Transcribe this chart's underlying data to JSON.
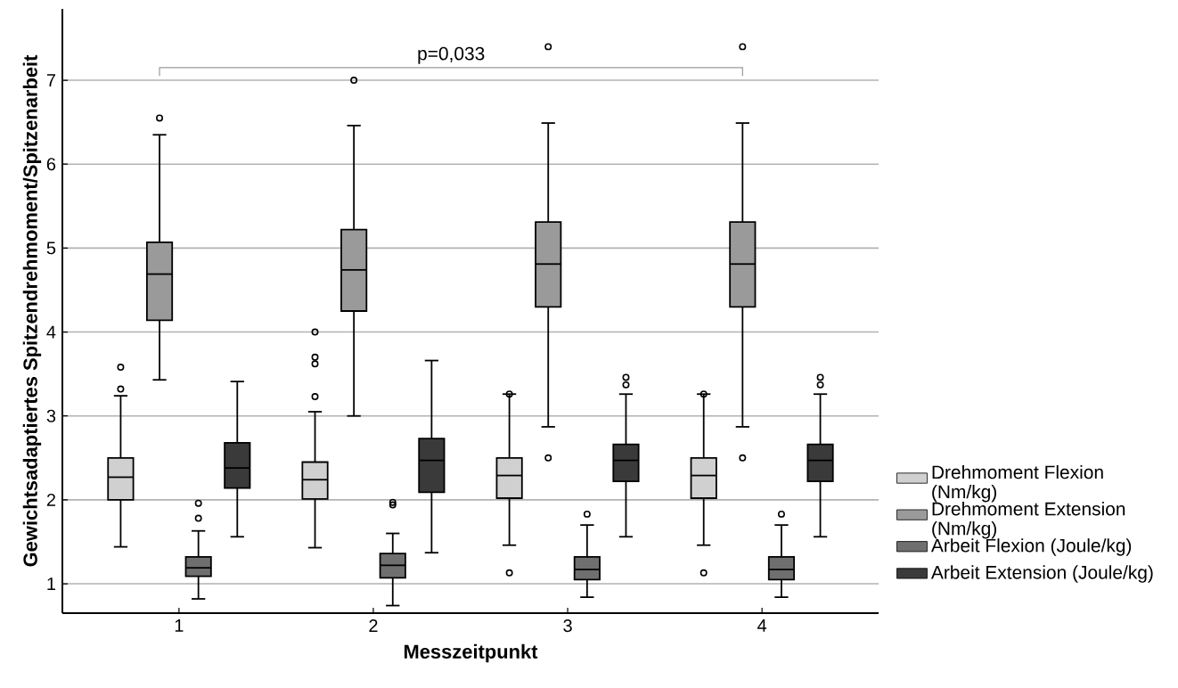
{
  "chart_data": {
    "type": "box",
    "xlabel": "Messzeitpunkt",
    "ylabel": "Gewichtsadaptiertes Spitzendrehmoment/Spitzenarbeit",
    "categories": [
      "1",
      "2",
      "3",
      "4"
    ],
    "ylim": [
      0.65,
      7.85
    ],
    "yticks": [
      1,
      2,
      3,
      4,
      5,
      6,
      7
    ],
    "grid": "y",
    "legend": "right",
    "annotations": [
      "p=0,033"
    ],
    "series": [
      {
        "name": "Drehmoment Flexion (Nm/kg)",
        "color": "#d0d0d0",
        "boxes": [
          {
            "low": 1.44,
            "q1": 2.0,
            "median": 2.27,
            "q3": 2.5,
            "high": 3.24,
            "outliers": [
              3.32,
              3.58
            ]
          },
          {
            "low": 1.43,
            "q1": 2.01,
            "median": 2.24,
            "q3": 2.45,
            "high": 3.05,
            "outliers": [
              3.23,
              3.62,
              3.7,
              4.0
            ]
          },
          {
            "low": 1.46,
            "q1": 2.02,
            "median": 2.29,
            "q3": 2.5,
            "high": 3.26,
            "outliers": [
              3.26,
              1.13
            ]
          },
          {
            "low": 1.46,
            "q1": 2.02,
            "median": 2.29,
            "q3": 2.5,
            "high": 3.26,
            "outliers": [
              3.26,
              1.13
            ]
          }
        ]
      },
      {
        "name": "Drehmoment Extension (Nm/kg)",
        "color": "#9a9a9a",
        "boxes": [
          {
            "low": 3.43,
            "q1": 4.14,
            "median": 4.69,
            "q3": 5.07,
            "high": 6.35,
            "outliers": [
              6.55
            ]
          },
          {
            "low": 3.0,
            "q1": 4.25,
            "median": 4.74,
            "q3": 5.22,
            "high": 6.46,
            "outliers": [
              7.0
            ]
          },
          {
            "low": 2.87,
            "q1": 4.3,
            "median": 4.81,
            "q3": 5.31,
            "high": 6.49,
            "outliers": [
              7.4,
              2.5
            ]
          },
          {
            "low": 2.87,
            "q1": 4.3,
            "median": 4.81,
            "q3": 5.31,
            "high": 6.49,
            "outliers": [
              7.4,
              2.5
            ]
          }
        ]
      },
      {
        "name": "Arbeit Flexion (Joule/kg)",
        "color": "#6f6f6f",
        "boxes": [
          {
            "low": 0.82,
            "q1": 1.09,
            "median": 1.19,
            "q3": 1.32,
            "high": 1.63,
            "outliers": [
              1.78,
              1.96
            ]
          },
          {
            "low": 0.74,
            "q1": 1.07,
            "median": 1.22,
            "q3": 1.36,
            "high": 1.6,
            "outliers": [
              1.94,
              1.97
            ]
          },
          {
            "low": 0.84,
            "q1": 1.05,
            "median": 1.17,
            "q3": 1.32,
            "high": 1.7,
            "outliers": [
              1.83
            ]
          },
          {
            "low": 0.84,
            "q1": 1.05,
            "median": 1.17,
            "q3": 1.32,
            "high": 1.7,
            "outliers": [
              1.83
            ]
          }
        ]
      },
      {
        "name": "Arbeit Extension (Joule/kg)",
        "color": "#3a3a3a",
        "boxes": [
          {
            "low": 1.56,
            "q1": 2.14,
            "median": 2.38,
            "q3": 2.68,
            "high": 3.41
          },
          {
            "low": 1.37,
            "q1": 2.09,
            "median": 2.47,
            "q3": 2.73,
            "high": 3.66
          },
          {
            "low": 1.56,
            "q1": 2.22,
            "median": 2.47,
            "q3": 2.66,
            "high": 3.26,
            "outliers": [
              3.37,
              3.46
            ]
          },
          {
            "low": 1.56,
            "q1": 2.22,
            "median": 2.47,
            "q3": 2.66,
            "high": 3.26,
            "outliers": [
              3.37,
              3.46
            ]
          }
        ]
      }
    ]
  }
}
